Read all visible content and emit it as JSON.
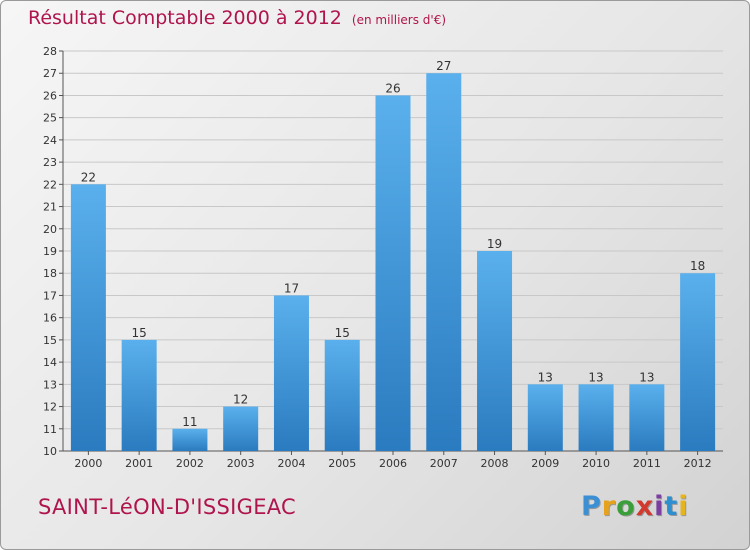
{
  "header": {
    "title": "Résultat Comptable 2000 à 2012",
    "unit": "(en milliers d'€)"
  },
  "footer": {
    "commune": "SAINT-LéON-D'ISSIGEAC",
    "logo_letters": [
      "P",
      "r",
      "o",
      "x",
      "i",
      "t",
      "i"
    ],
    "logo_colors": [
      "#3b8fd4",
      "#e6a21d",
      "#3a9e3a",
      "#d33a2f",
      "#7a3fa0",
      "#2d8fd0",
      "#e6b51d"
    ]
  },
  "colors": {
    "bar_top": "#5ab0ec",
    "bar_bottom": "#2a7bbf",
    "grid": "#c8c8c8"
  },
  "chart_data": {
    "type": "bar",
    "title": "Résultat Comptable 2000 à 2012",
    "xlabel": "",
    "ylabel": "",
    "categories": [
      "2000",
      "2001",
      "2002",
      "2003",
      "2004",
      "2005",
      "2006",
      "2007",
      "2008",
      "2009",
      "2010",
      "2011",
      "2012"
    ],
    "values": [
      22,
      15,
      11,
      12,
      17,
      15,
      26,
      27,
      19,
      13,
      13,
      13,
      18
    ],
    "ylim": [
      10,
      28
    ],
    "yticks": [
      10,
      11,
      12,
      13,
      14,
      15,
      16,
      17,
      18,
      19,
      20,
      21,
      22,
      23,
      24,
      25,
      26,
      27,
      28
    ],
    "grid": true
  }
}
